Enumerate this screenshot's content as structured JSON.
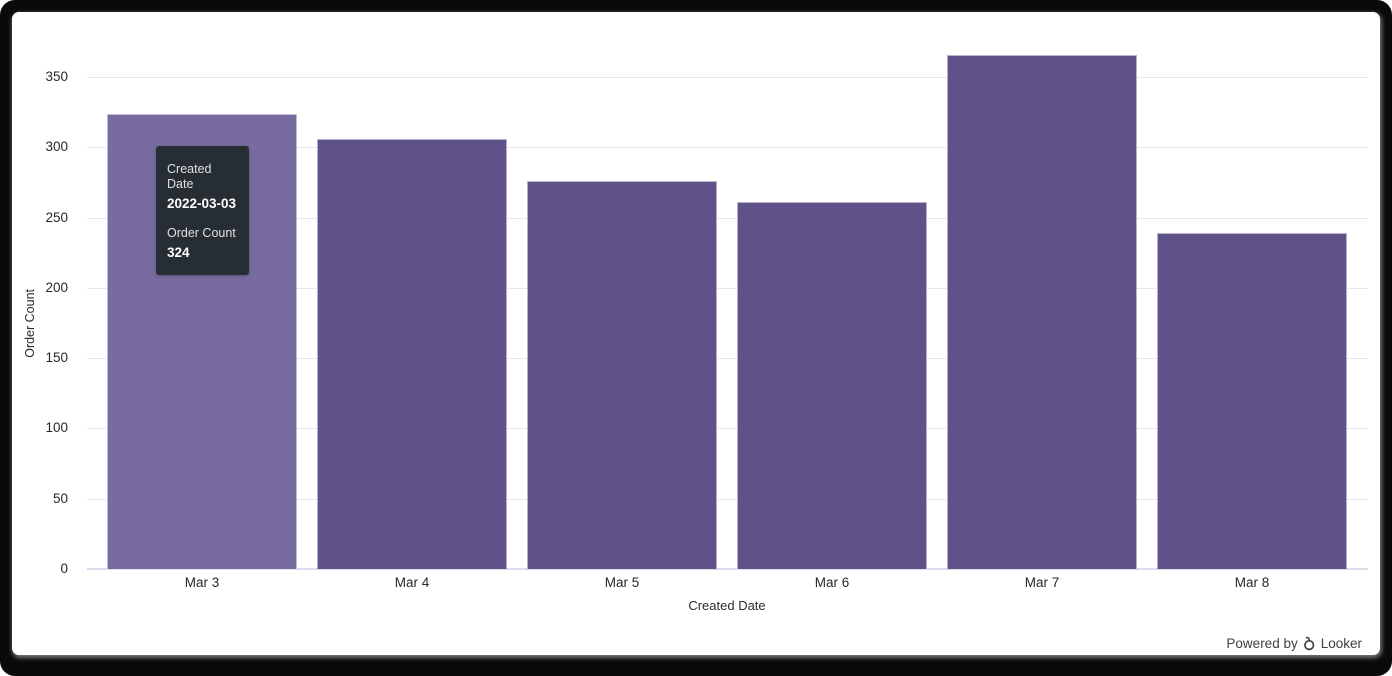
{
  "chart_data": {
    "type": "bar",
    "title": "",
    "xlabel": "Created Date",
    "ylabel": "Order Count",
    "categories": [
      "Mar 3",
      "Mar 4",
      "Mar 5",
      "Mar 6",
      "Mar 7",
      "Mar 8"
    ],
    "values": [
      324,
      306,
      276,
      261,
      366,
      239
    ],
    "yticks": [
      0,
      50,
      100,
      150,
      200,
      250,
      300,
      350
    ],
    "ylim": [
      0,
      350
    ],
    "grid": true,
    "legend": false,
    "bar_color": "#5f5289",
    "bar_color_highlighted": "#776b9f",
    "highlighted_index": 0,
    "gridline_color": "#e7e7e7",
    "axis_line_color": "#daddeb",
    "label_color": "#282828"
  },
  "tooltip": {
    "dimension_label": "Created Date",
    "dimension_value": "2022-03-03",
    "measure_label": "Order Count",
    "measure_value": "324",
    "background": "#262d33"
  },
  "footer": {
    "powered_by": "Powered by",
    "brand": "Looker"
  }
}
